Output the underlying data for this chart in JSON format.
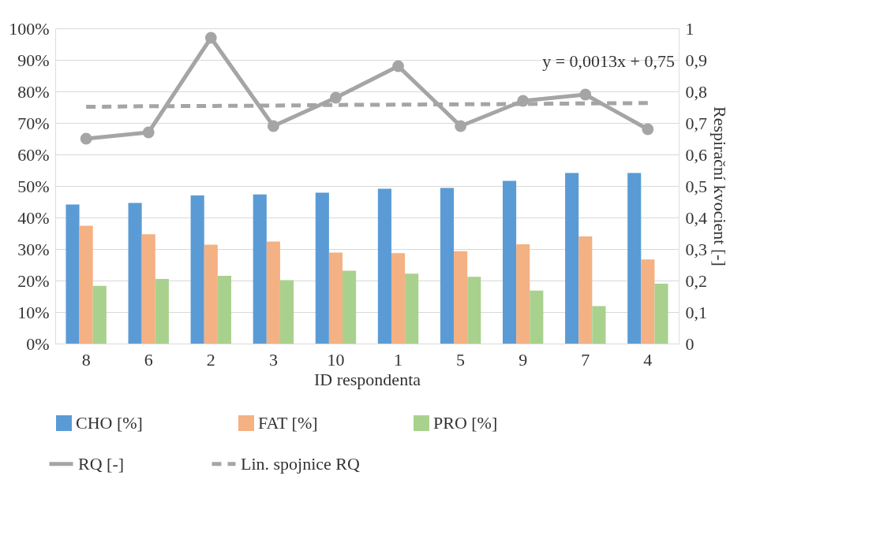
{
  "chart_data": {
    "type": "bar",
    "xlabel": "ID respondenta",
    "y2label": "Respirační kvocient [-]",
    "categories": [
      "8",
      "6",
      "2",
      "3",
      "10",
      "1",
      "5",
      "9",
      "7",
      "4"
    ],
    "series": [
      {
        "name": "CHO [%]",
        "color": "#5b9bd5",
        "values": [
          44.1,
          44.6,
          47.0,
          47.3,
          47.9,
          49.1,
          49.4,
          51.6,
          54.1,
          54.1
        ]
      },
      {
        "name": "FAT [%]",
        "color": "#f4b183",
        "values": [
          37.4,
          34.7,
          31.4,
          32.4,
          28.9,
          28.7,
          29.3,
          31.5,
          34.0,
          26.7
        ]
      },
      {
        "name": "PRO [%]",
        "color": "#a9d18e",
        "values": [
          18.3,
          20.5,
          21.5,
          20.1,
          23.1,
          22.2,
          21.2,
          16.8,
          11.9,
          19.0
        ]
      },
      {
        "name": "RQ [-]",
        "type": "line",
        "axis": "y2",
        "color": "#a5a5a5",
        "marker": "circle",
        "line_style": "solid",
        "values": [
          0.65,
          0.67,
          0.97,
          0.69,
          0.78,
          0.88,
          0.69,
          0.77,
          0.79,
          0.68
        ]
      },
      {
        "name": "Lin. spojnice RQ",
        "type": "line",
        "axis": "y2",
        "color": "#a5a5a5",
        "marker": "none",
        "line_style": "dashed",
        "values": [
          0.751,
          0.753,
          0.754,
          0.755,
          0.757,
          0.758,
          0.759,
          0.76,
          0.762,
          0.763
        ]
      }
    ],
    "ylim": [
      0,
      100
    ],
    "yticks": [
      {
        "value": 0,
        "label": "0%"
      },
      {
        "value": 10,
        "label": "10%"
      },
      {
        "value": 20,
        "label": "20%"
      },
      {
        "value": 30,
        "label": "30%"
      },
      {
        "value": 40,
        "label": "40%"
      },
      {
        "value": 50,
        "label": "50%"
      },
      {
        "value": 60,
        "label": "60%"
      },
      {
        "value": 70,
        "label": "70%"
      },
      {
        "value": 80,
        "label": "80%"
      },
      {
        "value": 90,
        "label": "90%"
      },
      {
        "value": 100,
        "label": "100%"
      }
    ],
    "y2lim": [
      0,
      1
    ],
    "y2ticks": [
      0,
      {
        "value": 0.1,
        "label": "0,1"
      },
      {
        "value": 0.2,
        "label": "0,2"
      },
      {
        "value": 0.3,
        "label": "0,3"
      },
      {
        "value": 0.4,
        "label": "0,4"
      },
      {
        "value": 0.5,
        "label": "0,5"
      },
      {
        "value": 0.6,
        "label": "0,6"
      },
      {
        "value": 0.7,
        "label": "0,7"
      },
      {
        "value": 0.8,
        "label": "0,8"
      },
      {
        "value": 0.9,
        "label": "0,9"
      },
      1
    ],
    "annotations": [
      "y = 0,0013x + 0,75"
    ],
    "grid": "y",
    "legend": "bottom"
  }
}
